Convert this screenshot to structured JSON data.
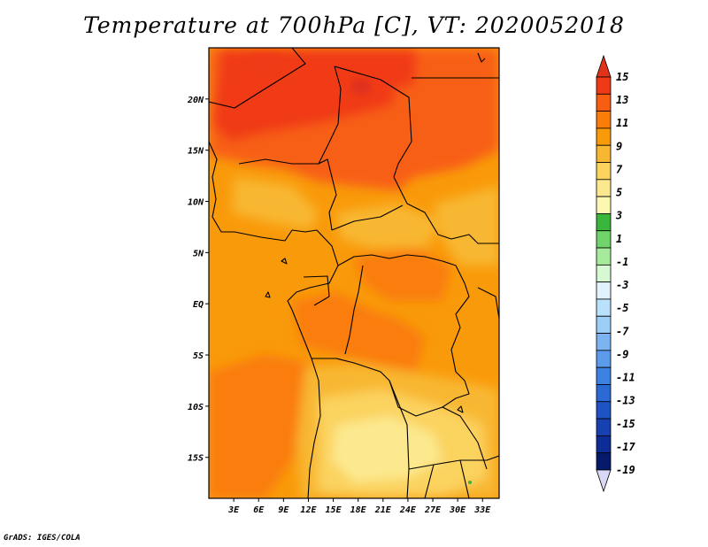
{
  "title": "Temperature at 700hPa [C], VT: 2020052018",
  "credit": "GrADS: IGES/COLA",
  "map": {
    "lon_range": [
      0,
      35
    ],
    "lat_range": [
      -19,
      25
    ],
    "lon_ticks": [
      {
        "value": 3,
        "label": "3E"
      },
      {
        "value": 6,
        "label": "6E"
      },
      {
        "value": 9,
        "label": "9E"
      },
      {
        "value": 12,
        "label": "12E"
      },
      {
        "value": 15,
        "label": "15E"
      },
      {
        "value": 18,
        "label": "18E"
      },
      {
        "value": 21,
        "label": "21E"
      },
      {
        "value": 24,
        "label": "24E"
      },
      {
        "value": 27,
        "label": "27E"
      },
      {
        "value": 30,
        "label": "30E"
      },
      {
        "value": 33,
        "label": "33E"
      }
    ],
    "lat_ticks": [
      {
        "value": 20,
        "label": "20N"
      },
      {
        "value": 15,
        "label": "15N"
      },
      {
        "value": 10,
        "label": "10N"
      },
      {
        "value": 5,
        "label": "5N"
      },
      {
        "value": 0,
        "label": "EQ"
      },
      {
        "value": -5,
        "label": "5S"
      },
      {
        "value": -10,
        "label": "10S"
      },
      {
        "value": -15,
        "label": "15S"
      }
    ]
  },
  "colorbar": {
    "levels": [
      15,
      13,
      11,
      9,
      7,
      5,
      3,
      1,
      -1,
      -3,
      -5,
      -7,
      -9,
      -11,
      -13,
      -15,
      -17,
      -19
    ],
    "labels": [
      "15",
      "13",
      "11",
      "9",
      "7",
      "5",
      "3",
      "1",
      "-1",
      "-3",
      "-5",
      "-7",
      "-9",
      "-11",
      "-13",
      "-15",
      "-17",
      "-19"
    ],
    "colors": [
      "#f03a17",
      "#f85e12",
      "#fa7d09",
      "#f99a0a",
      "#f8b732",
      "#fbd35e",
      "#fce98f",
      "#fdf7b4",
      "#39b63b",
      "#71d36c",
      "#a6eb9c",
      "#d6f8d2",
      "#e0f2fb",
      "#b9e1fb",
      "#9bcdf7",
      "#7bb4f1",
      "#5c9aeb",
      "#3d82e3",
      "#2b69d4",
      "#1f53c3",
      "#1741b0",
      "#0d2d96",
      "#051a6b",
      "#d9d9f5"
    ],
    "top_color": "#e1321c",
    "bottom_color": "#d9d9f5"
  }
}
